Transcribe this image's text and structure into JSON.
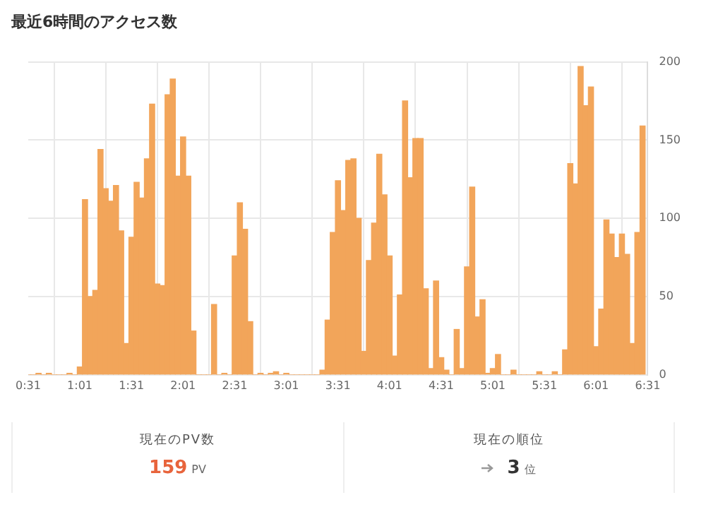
{
  "chart_data": [
    {
      "type": "bar",
      "title": "最近6時間のアクセス数",
      "x": [
        0.5167,
        0.5667,
        0.6167,
        0.6667,
        0.7167,
        0.7667,
        0.8167,
        0.8667,
        0.9167,
        0.9667,
        1.0167,
        1.0667,
        1.1167,
        1.1667,
        1.2167,
        1.2667,
        1.3167,
        1.3667,
        1.4167,
        1.4667,
        1.5167,
        1.5667,
        1.6167,
        1.6667,
        1.7167,
        1.7667,
        1.8167,
        1.8667,
        1.9167,
        1.9667,
        2.0167,
        2.0667,
        2.1167,
        2.1667,
        2.2167,
        2.2667,
        2.3167,
        2.3667,
        2.4167,
        2.4667,
        2.5167,
        2.5667,
        2.6167,
        2.6667,
        2.7167,
        2.7667,
        2.8167,
        2.8667,
        2.9167,
        2.9667,
        3.0167,
        3.0667,
        3.1167,
        3.1667,
        3.2167,
        3.2667,
        3.3167,
        3.3667,
        3.4167,
        3.4667,
        3.5167,
        3.5667,
        3.6167,
        3.6667,
        3.7167,
        3.7667,
        3.8167,
        3.8667,
        3.9167,
        3.9667,
        4.0167,
        4.0667,
        4.1167,
        4.1667,
        4.2167,
        4.2667,
        4.3167,
        4.3667,
        4.4167,
        4.4667,
        4.5167,
        4.5667,
        4.6167,
        4.6667,
        4.7167,
        4.7667,
        4.8167,
        4.8667,
        4.9167,
        4.9667,
        5.0167,
        5.0667,
        5.1167,
        5.1667,
        5.2167,
        5.2667,
        5.3167,
        5.3667,
        5.4167,
        5.4667,
        5.5167,
        5.5667,
        5.6167,
        5.6667,
        5.7167,
        5.7667,
        5.8167,
        5.8667,
        5.9167,
        5.9667,
        6.0167,
        6.0667,
        6.1167,
        6.1667,
        6.2167,
        6.2667,
        6.3167,
        6.3667,
        6.4167,
        6.4667
      ],
      "values": [
        0,
        0,
        1,
        0,
        1,
        0,
        0,
        0,
        1,
        0,
        5,
        112,
        50,
        54,
        144,
        119,
        111,
        121,
        92,
        20,
        88,
        123,
        113,
        138,
        173,
        58,
        57,
        179,
        189,
        127,
        152,
        127,
        28,
        0,
        0,
        0,
        45,
        0,
        1,
        0,
        76,
        110,
        93,
        34,
        0,
        1,
        0,
        1,
        2,
        0,
        1,
        0,
        0,
        0,
        0,
        0,
        0,
        3,
        35,
        91,
        124,
        105,
        137,
        138,
        100,
        15,
        73,
        97,
        141,
        115,
        76,
        12,
        51,
        175,
        126,
        151,
        151,
        55,
        4,
        60,
        11,
        3,
        0,
        29,
        4,
        69,
        120,
        37,
        48,
        1,
        4,
        13,
        0,
        0,
        3,
        0,
        0,
        0,
        0,
        2,
        0,
        0,
        2,
        0,
        16,
        135,
        122,
        197,
        172,
        184,
        18,
        42,
        99,
        90,
        75,
        90,
        77,
        20,
        91,
        159
      ],
      "color": "#f2a55a",
      "xlim": [
        0.5167,
        6.5167
      ],
      "xticks": [
        {
          "value": 0.5167,
          "label": "0:31"
        },
        {
          "value": 1.0167,
          "label": "1:01"
        },
        {
          "value": 1.5167,
          "label": "1:31"
        },
        {
          "value": 2.0167,
          "label": "2:01"
        },
        {
          "value": 2.5167,
          "label": "2:31"
        },
        {
          "value": 3.0167,
          "label": "3:01"
        },
        {
          "value": 3.5167,
          "label": "3:31"
        },
        {
          "value": 4.0167,
          "label": "4:01"
        },
        {
          "value": 4.5167,
          "label": "4:31"
        },
        {
          "value": 5.0167,
          "label": "5:01"
        },
        {
          "value": 5.5167,
          "label": "5:31"
        },
        {
          "value": 6.0167,
          "label": "6:01"
        },
        {
          "value": 6.5167,
          "label": "6:31"
        }
      ],
      "ylim": [
        0,
        200
      ],
      "yticks": [
        0,
        50,
        100,
        150,
        200
      ],
      "grid": true
    },
    {
      "type": "other",
      "annotations": [
        "現在のPV数",
        "159",
        "PV",
        "現在の順位",
        "3",
        "位"
      ]
    }
  ]
}
